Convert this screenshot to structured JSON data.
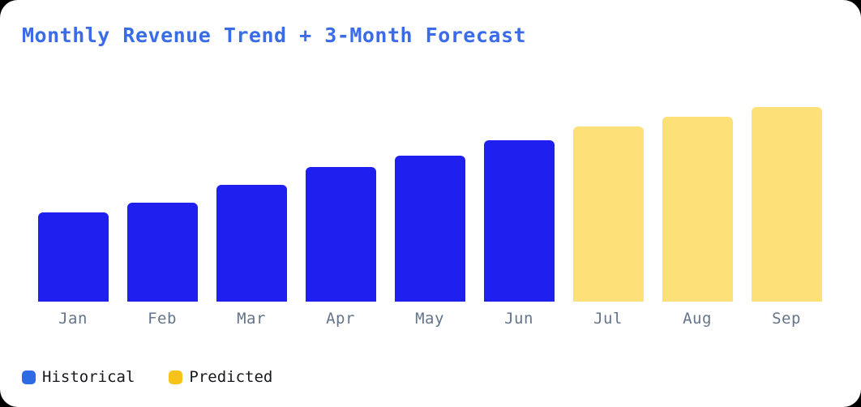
{
  "chart_data": {
    "type": "bar",
    "title": "Monthly Revenue Trend + 3-Month Forecast",
    "title_color": "#3a6be8",
    "categories": [
      "Jan",
      "Feb",
      "Mar",
      "Apr",
      "May",
      "Jun",
      "Jul",
      "Aug",
      "Sep"
    ],
    "values": [
      46,
      51,
      60,
      69,
      75,
      83,
      90,
      95,
      100
    ],
    "values_note": "estimated relative units (percent of Sep bar); no y-axis tick labels visible in image",
    "bar_series": [
      "Historical",
      "Historical",
      "Historical",
      "Historical",
      "Historical",
      "Historical",
      "Predicted",
      "Predicted",
      "Predicted"
    ],
    "series": [
      {
        "name": "Historical",
        "color": "#1f1ff0",
        "categories": [
          "Jan",
          "Feb",
          "Mar",
          "Apr",
          "May",
          "Jun"
        ],
        "values": [
          46,
          51,
          60,
          69,
          75,
          83
        ]
      },
      {
        "name": "Predicted",
        "color": "#fde077",
        "categories": [
          "Jul",
          "Aug",
          "Sep"
        ],
        "values": [
          90,
          95,
          100
        ]
      }
    ],
    "series_colors": {
      "Historical": "#1f1ff0",
      "Predicted": "#fde077"
    },
    "xlabel": "",
    "ylabel": "",
    "ylim": [
      0,
      100
    ],
    "grid": false,
    "axes_visible": false,
    "x_tick_color": "#64748b",
    "legend_position": "bottom-left"
  },
  "legend": {
    "items": [
      {
        "label": "Historical",
        "swatch_color": "#2f6ae5"
      },
      {
        "label": "Predicted",
        "swatch_color": "#f7c31a"
      }
    ],
    "text_color": "#17191d"
  }
}
